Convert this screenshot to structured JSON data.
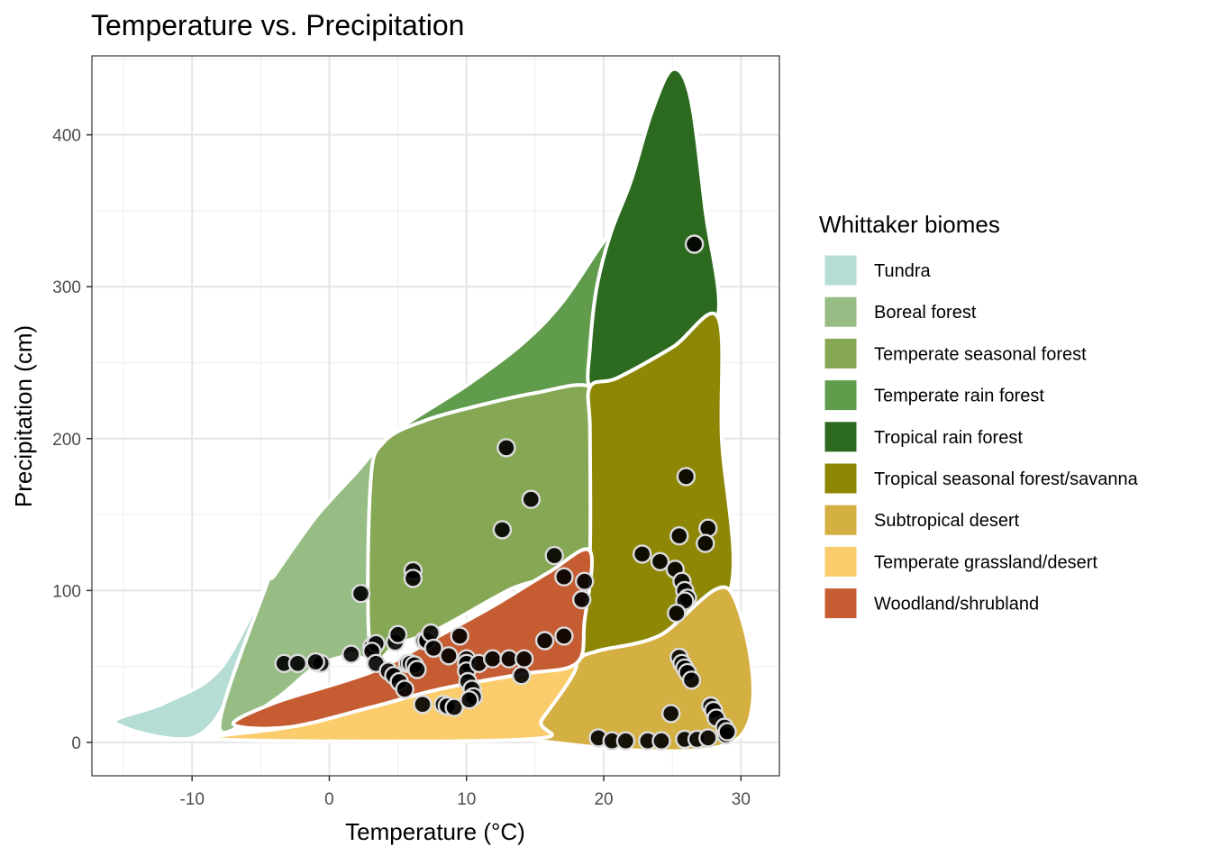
{
  "chart_data": {
    "type": "scatter",
    "title": "Temperature vs. Precipitation",
    "xlabel": "Temperature (°C)",
    "ylabel": "Precipitation (cm)",
    "xlim": [
      -17.3,
      32.8
    ],
    "ylim": [
      -22,
      452
    ],
    "x_ticks": [
      -10,
      0,
      10,
      20,
      30
    ],
    "y_ticks": [
      0,
      100,
      200,
      300,
      400
    ],
    "grid": true,
    "legend": {
      "title": "Whittaker biomes",
      "position": "right",
      "items": [
        {
          "label": "Tundra",
          "color": "#B6DCD6"
        },
        {
          "label": "Boreal forest",
          "color": "#97BD84"
        },
        {
          "label": "Temperate seasonal forest",
          "color": "#86A855"
        },
        {
          "label": "Temperate rain forest",
          "color": "#619C4D"
        },
        {
          "label": "Tropical rain forest",
          "color": "#2C6B1F"
        },
        {
          "label": "Tropical seasonal forest/savanna",
          "color": "#8E8706"
        },
        {
          "label": "Subtropical desert",
          "color": "#D4AF42"
        },
        {
          "label": "Temperate grassland/desert",
          "color": "#FBCC6B"
        },
        {
          "label": "Woodland/shrubland",
          "color": "#C55C32"
        }
      ]
    },
    "biome_regions": {
      "Tundra": [
        [
          -15.6,
          13
        ],
        [
          -12,
          26
        ],
        [
          -8,
          48
        ],
        [
          -4.6,
          103
        ],
        [
          -5.2,
          80
        ],
        [
          -7,
          35
        ],
        [
          -10,
          3
        ],
        [
          -15.6,
          13
        ]
      ],
      "Boreal forest": [
        [
          -8,
          10
        ],
        [
          -4.6,
          103
        ],
        [
          -4,
          110
        ],
        [
          -1,
          148
        ],
        [
          2,
          178
        ],
        [
          4,
          198
        ],
        [
          3,
          170
        ],
        [
          3,
          65
        ],
        [
          1.5,
          58
        ],
        [
          -1,
          50
        ],
        [
          -4,
          28
        ],
        [
          -8,
          10
        ]
      ],
      "Temperate seasonal forest": [
        [
          4,
          198
        ],
        [
          7,
          212
        ],
        [
          11,
          222
        ],
        [
          15,
          230
        ],
        [
          19,
          234
        ],
        [
          19,
          205
        ],
        [
          19,
          126
        ],
        [
          13,
          100
        ],
        [
          8,
          75
        ],
        [
          5,
          65
        ],
        [
          3,
          60
        ],
        [
          3,
          170
        ],
        [
          4,
          198
        ]
      ],
      "Temperate rain forest": [
        [
          4,
          198
        ],
        [
          6,
          212
        ],
        [
          10,
          235
        ],
        [
          14,
          262
        ],
        [
          17,
          290
        ],
        [
          20.5,
          335
        ],
        [
          19.5,
          300
        ],
        [
          19,
          260
        ],
        [
          19,
          234
        ],
        [
          15,
          230
        ],
        [
          11,
          222
        ],
        [
          7,
          212
        ],
        [
          4,
          198
        ]
      ],
      "Tropical rain forest": [
        [
          20.5,
          335
        ],
        [
          22,
          370
        ],
        [
          23.5,
          415
        ],
        [
          25,
          443
        ],
        [
          26.3,
          425
        ],
        [
          27.4,
          350
        ],
        [
          28.3,
          280
        ],
        [
          25,
          260
        ],
        [
          21,
          240
        ],
        [
          19,
          234
        ],
        [
          19,
          260
        ],
        [
          19.5,
          300
        ],
        [
          20.5,
          335
        ]
      ],
      "Tropical seasonal forest/savanna": [
        [
          19,
          234
        ],
        [
          21,
          240
        ],
        [
          25,
          260
        ],
        [
          28.3,
          280
        ],
        [
          28.6,
          200
        ],
        [
          29.2,
          100
        ],
        [
          24,
          70
        ],
        [
          19.5,
          60
        ],
        [
          18,
          52
        ],
        [
          18.6,
          80
        ],
        [
          19,
          126
        ],
        [
          19,
          205
        ],
        [
          19,
          234
        ]
      ],
      "Subtropical desert": [
        [
          18,
          52
        ],
        [
          19.5,
          60
        ],
        [
          24,
          70
        ],
        [
          29.2,
          100
        ],
        [
          29.7,
          2
        ],
        [
          14.3,
          2
        ],
        [
          15.5,
          15
        ],
        [
          18,
          52
        ]
      ],
      "Temperate grassland/desert": [
        [
          -8,
          2
        ],
        [
          -3,
          10
        ],
        [
          3,
          23
        ],
        [
          8,
          35
        ],
        [
          14,
          45
        ],
        [
          18,
          52
        ],
        [
          15.5,
          15
        ],
        [
          14.3,
          2
        ],
        [
          -8,
          2
        ]
      ],
      "Woodland/shrubland": [
        [
          -7,
          12
        ],
        [
          -4,
          26
        ],
        [
          1,
          40
        ],
        [
          4,
          50
        ],
        [
          8,
          70
        ],
        [
          12,
          90
        ],
        [
          16,
          112
        ],
        [
          19,
          126
        ],
        [
          18.6,
          80
        ],
        [
          18,
          52
        ],
        [
          14,
          45
        ],
        [
          8,
          35
        ],
        [
          3,
          23
        ],
        [
          -3,
          10
        ],
        [
          -7,
          12
        ]
      ]
    },
    "points": [
      [
        26.6,
        328
      ],
      [
        12.9,
        194
      ],
      [
        26.0,
        175
      ],
      [
        14.7,
        160
      ],
      [
        12.6,
        140
      ],
      [
        25.5,
        136
      ],
      [
        27.6,
        141
      ],
      [
        27.4,
        131
      ],
      [
        6.1,
        113
      ],
      [
        6.1,
        108
      ],
      [
        22.8,
        124
      ],
      [
        24.1,
        119
      ],
      [
        16.4,
        123
      ],
      [
        17.1,
        109
      ],
      [
        25.2,
        114
      ],
      [
        25.7,
        106
      ],
      [
        25.9,
        100
      ],
      [
        26.1,
        95
      ],
      [
        25.9,
        93
      ],
      [
        25.3,
        85
      ],
      [
        18.6,
        106
      ],
      [
        18.4,
        94
      ],
      [
        2.3,
        98
      ],
      [
        -3.3,
        52
      ],
      [
        -2.3,
        52
      ],
      [
        -0.6,
        52
      ],
      [
        -1.0,
        53
      ],
      [
        1.6,
        58
      ],
      [
        3.1,
        63
      ],
      [
        3.4,
        65
      ],
      [
        3.1,
        60
      ],
      [
        3.4,
        52
      ],
      [
        4.8,
        66
      ],
      [
        5.0,
        71
      ],
      [
        4.3,
        47
      ],
      [
        4.7,
        44
      ],
      [
        5.1,
        40
      ],
      [
        5.5,
        35
      ],
      [
        5.7,
        52
      ],
      [
        5.9,
        52
      ],
      [
        6.2,
        51
      ],
      [
        6.4,
        48
      ],
      [
        6.9,
        67
      ],
      [
        7.1,
        67
      ],
      [
        7.4,
        72
      ],
      [
        7.6,
        62
      ],
      [
        6.8,
        25
      ],
      [
        8.3,
        25
      ],
      [
        8.6,
        24
      ],
      [
        9.1,
        23
      ],
      [
        8.7,
        57
      ],
      [
        9.5,
        70
      ],
      [
        10.0,
        55
      ],
      [
        10.0,
        52
      ],
      [
        10.0,
        47
      ],
      [
        10.1,
        40
      ],
      [
        10.4,
        35
      ],
      [
        10.5,
        30
      ],
      [
        10.2,
        28
      ],
      [
        10.9,
        52
      ],
      [
        11.9,
        55
      ],
      [
        13.1,
        55
      ],
      [
        14.0,
        44
      ],
      [
        14.2,
        55
      ],
      [
        15.7,
        67
      ],
      [
        17.1,
        70
      ],
      [
        25.5,
        56
      ],
      [
        25.7,
        52
      ],
      [
        25.9,
        49
      ],
      [
        26.1,
        46
      ],
      [
        26.4,
        41
      ],
      [
        27.8,
        24
      ],
      [
        28.0,
        21
      ],
      [
        28.2,
        16
      ],
      [
        28.8,
        10
      ],
      [
        24.9,
        19
      ],
      [
        19.6,
        3
      ],
      [
        20.6,
        1
      ],
      [
        21.6,
        1
      ],
      [
        23.2,
        1
      ],
      [
        24.2,
        1
      ],
      [
        25.9,
        2
      ],
      [
        26.8,
        2
      ],
      [
        27.6,
        3
      ],
      [
        28.9,
        5
      ],
      [
        29.0,
        7
      ]
    ]
  }
}
